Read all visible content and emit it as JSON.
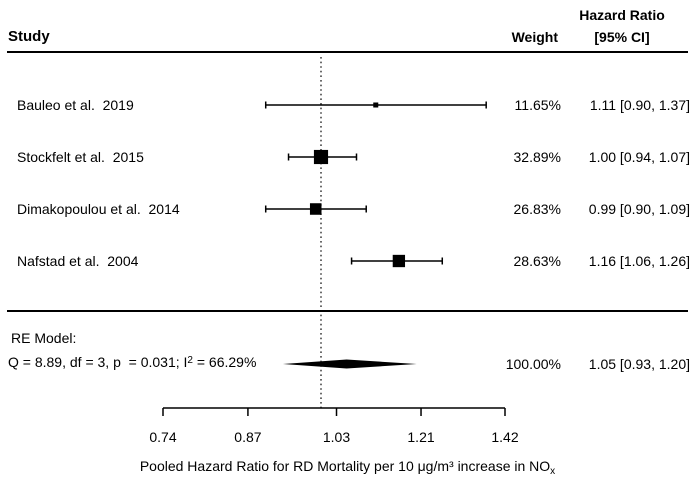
{
  "header": {
    "study": "Study",
    "weight": "Weight",
    "hr_line1": "Hazard Ratio",
    "hr_line2": "[95% CI]"
  },
  "chart_data": {
    "type": "scatter",
    "subtype": "forest-plot-meta-analysis",
    "x_scale": "log",
    "x_range": [
      0.74,
      1.42
    ],
    "null_line": 1.0,
    "grid": "off",
    "axis": {
      "ticks": [
        "0.74",
        "0.87",
        "1.03",
        "1.21",
        "1.42"
      ],
      "label_pre": "Pooled Hazard Ratio for RD Mortality per 10 μg/m³ increase in NO",
      "label_sub": "x"
    },
    "studies": [
      {
        "label": "Bauleo et al.  2019",
        "weight": "11.65%",
        "ci_text": "1.11 [0.90, 1.37]",
        "est": 1.11,
        "lo": 0.9,
        "hi": 1.37,
        "weight_pct": 11.65
      },
      {
        "label": "Stockfelt et al.  2015",
        "weight": "32.89%",
        "ci_text": "1.00 [0.94, 1.07]",
        "est": 1.0,
        "lo": 0.94,
        "hi": 1.07,
        "weight_pct": 32.89
      },
      {
        "label": "Dimakopoulou et al.  2014",
        "weight": "26.83%",
        "ci_text": "0.99 [0.90, 1.09]",
        "est": 0.99,
        "lo": 0.9,
        "hi": 1.09,
        "weight_pct": 26.83
      },
      {
        "label": "Nafstad et al.  2004",
        "weight": "28.63%",
        "ci_text": "1.16 [1.06, 1.26]",
        "est": 1.16,
        "lo": 1.06,
        "hi": 1.26,
        "weight_pct": 28.63
      }
    ],
    "summary": {
      "label": "RE Model:",
      "stats_pre": "Q = 8.89, df = 3, p  = 0.031; I",
      "stats_sup": "2",
      "stats_post": " = 66.29%",
      "weight": "100.00%",
      "ci_text": "1.05 [0.93, 1.20]",
      "est": 1.05,
      "lo": 0.93,
      "hi": 1.2
    }
  }
}
